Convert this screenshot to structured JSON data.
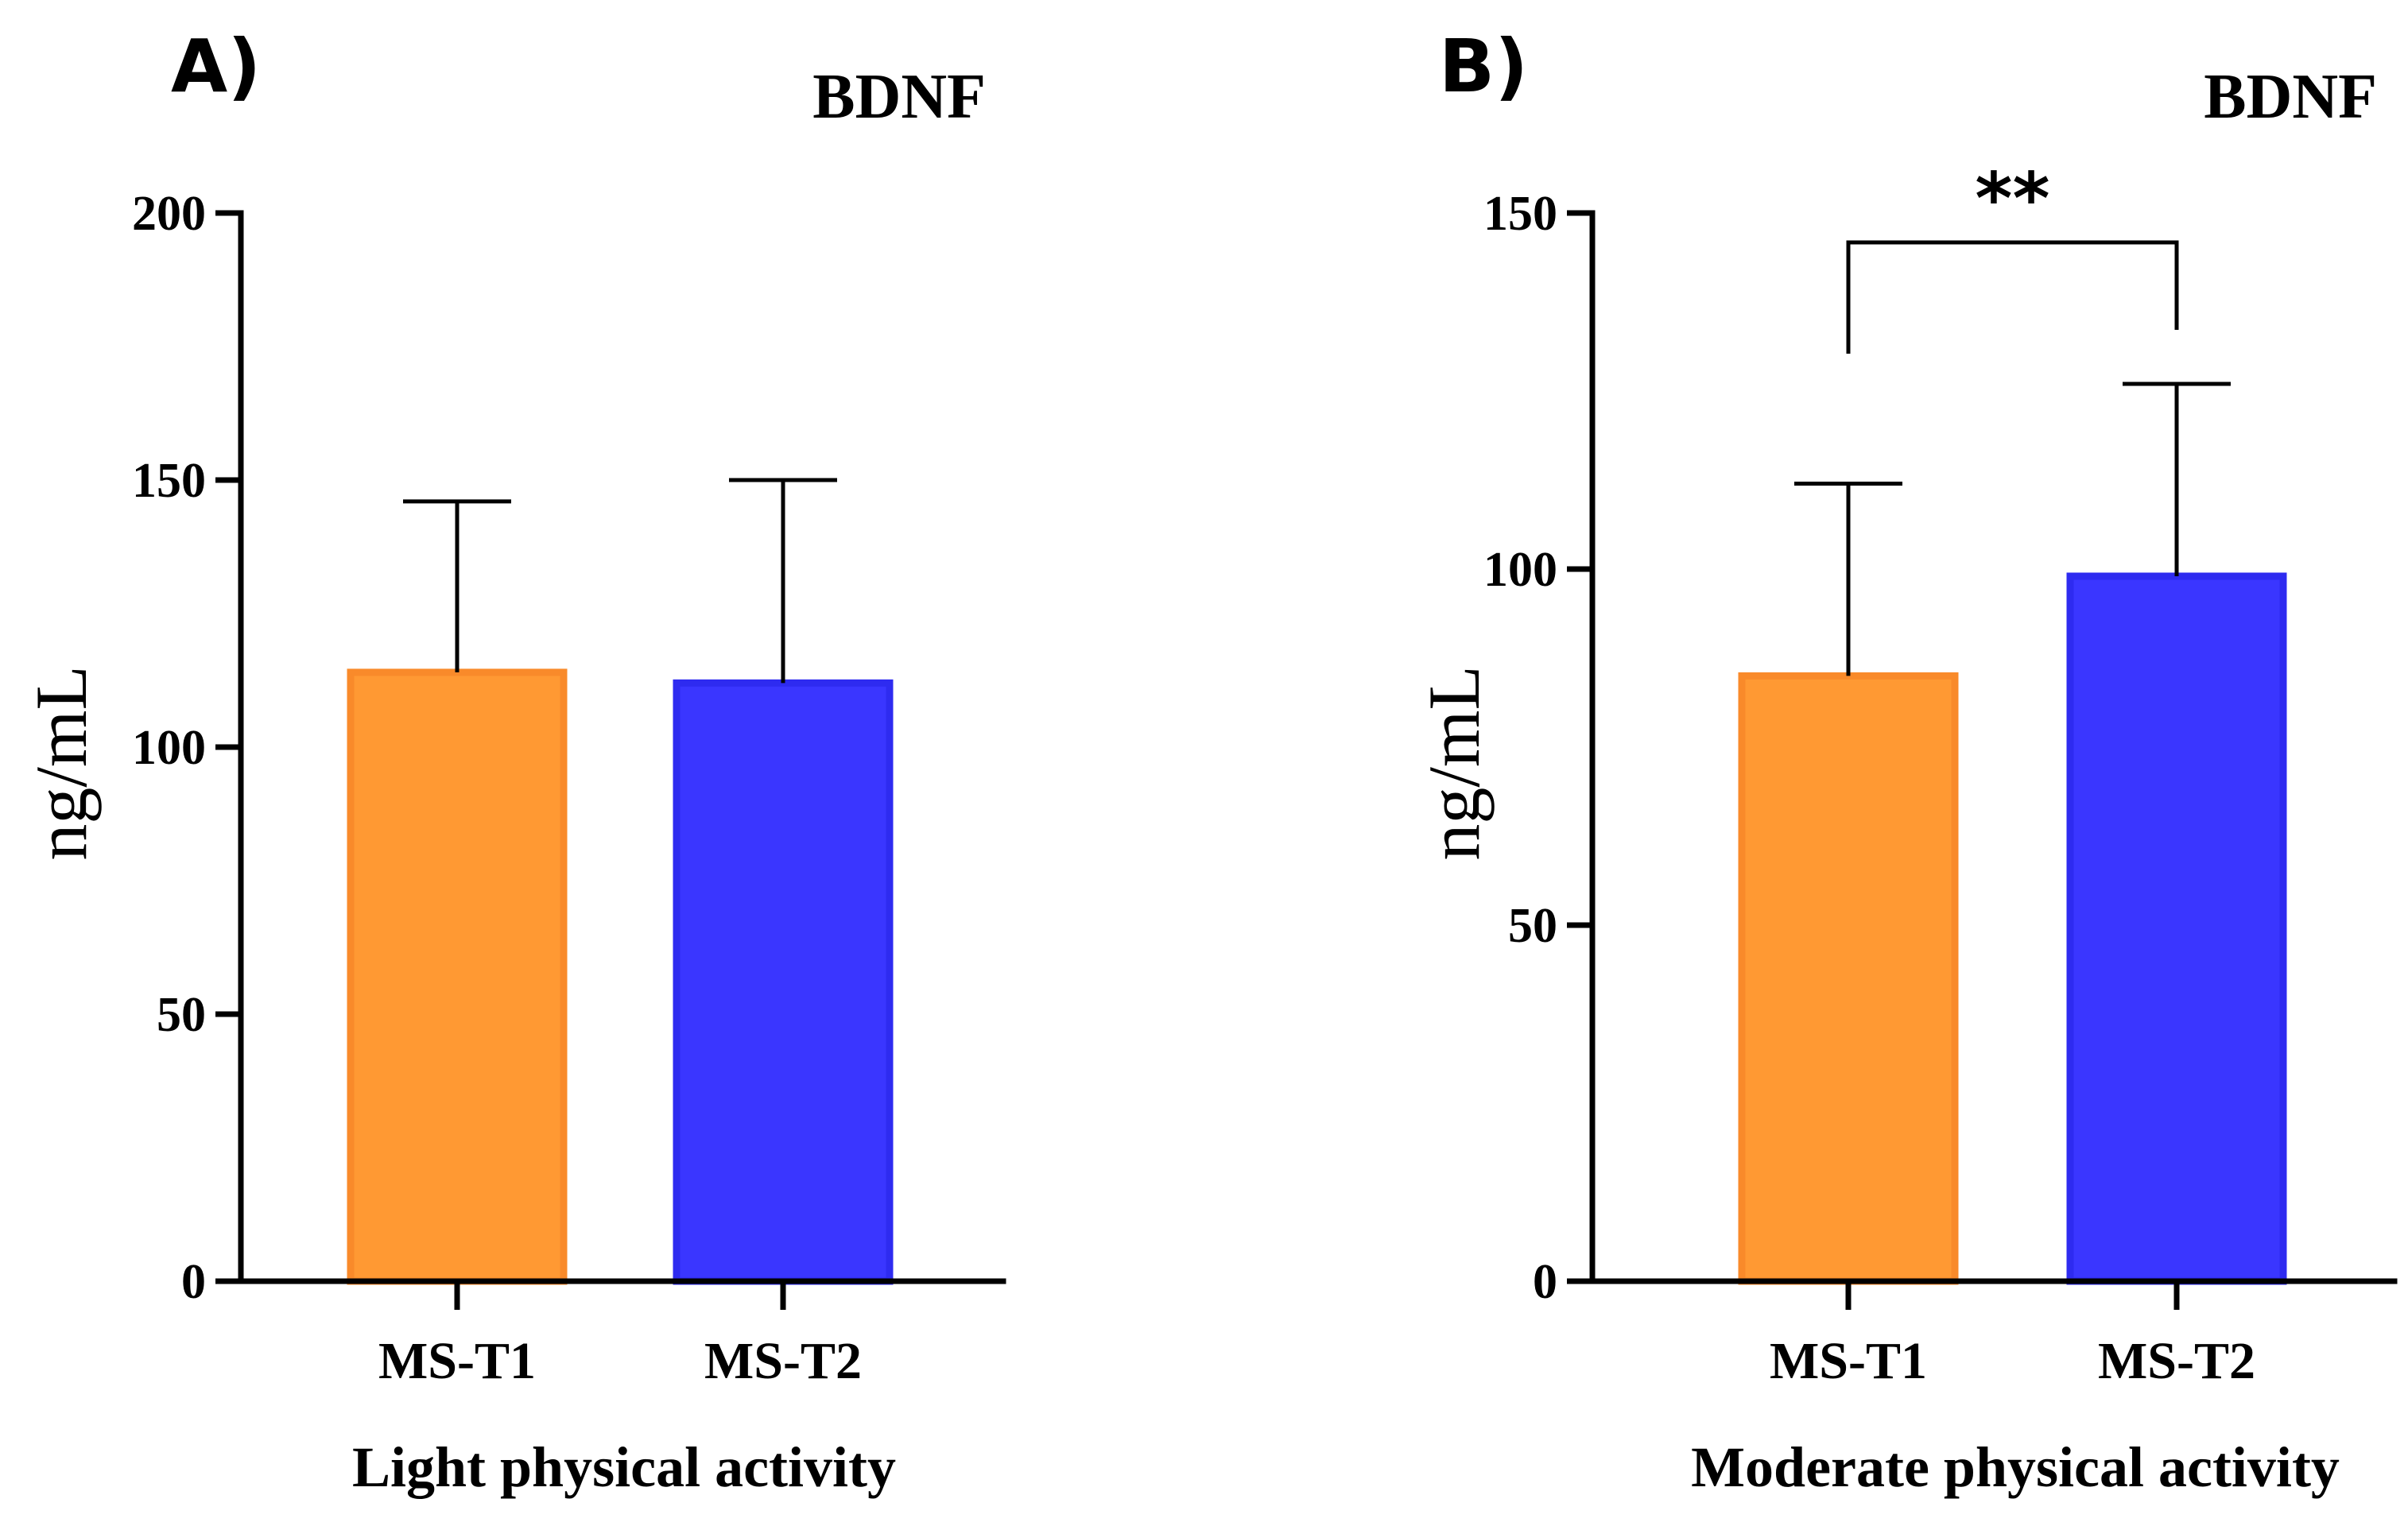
{
  "chart_data": [
    {
      "type": "bar",
      "panel": "A)",
      "title": "BDNF",
      "xlabel": "Light physical activity",
      "ylabel": "ng/mL",
      "ylim": [
        0,
        200
      ],
      "yticks": [
        0,
        50,
        100,
        150,
        200
      ],
      "categories": [
        "MS-T1",
        "MS-T2"
      ],
      "values": [
        114,
        112
      ],
      "error_upper": [
        146,
        150
      ],
      "colors": [
        "#FF9933",
        "#3A36FF"
      ],
      "edge_colors": [
        "#F98A2A",
        "#2E2BF0"
      ],
      "significance": null
    },
    {
      "type": "bar",
      "panel": "B)",
      "title": "BDNF",
      "xlabel": "Moderate physical activity",
      "ylabel": "ng/mL",
      "ylim": [
        0,
        150
      ],
      "yticks": [
        0,
        50,
        100,
        150
      ],
      "categories": [
        "MS-T1",
        "MS-T2"
      ],
      "values": [
        85,
        99
      ],
      "error_upper": [
        112,
        126
      ],
      "colors": [
        "#FF9933",
        "#3A36FF"
      ],
      "edge_colors": [
        "#F98A2A",
        "#2E2BF0"
      ],
      "significance": {
        "pair": [
          0,
          1
        ],
        "label": "**"
      }
    }
  ]
}
